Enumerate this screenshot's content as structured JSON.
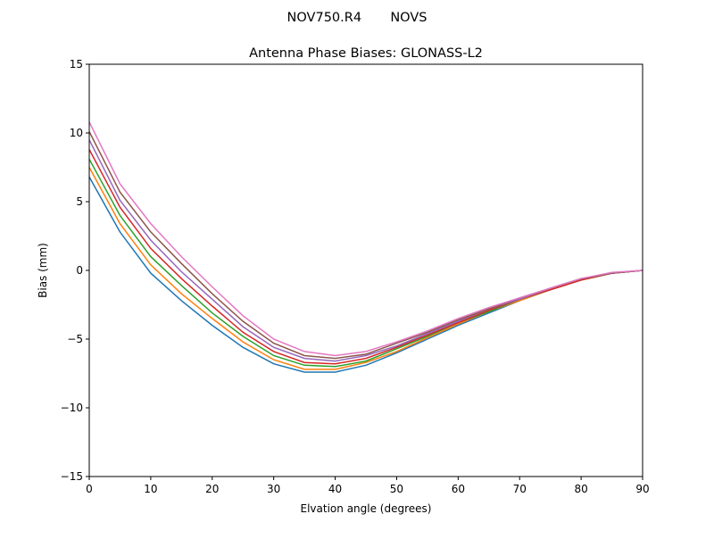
{
  "figure": {
    "suptitle": "NOV750.R4       NOVS"
  },
  "chart_data": {
    "type": "line",
    "title": "Antenna Phase Biases: GLONASS-L2",
    "xlabel": "Elvation angle (degrees)",
    "ylabel": "Bias (mm)",
    "xlim": [
      0,
      90
    ],
    "ylim": [
      -15,
      15
    ],
    "xticks": [
      0,
      10,
      20,
      30,
      40,
      50,
      60,
      70,
      80,
      90
    ],
    "yticks": [
      -15,
      -10,
      -5,
      0,
      5,
      10,
      15
    ],
    "grid": false,
    "legend": "none",
    "x": [
      0,
      5,
      10,
      15,
      20,
      25,
      30,
      35,
      40,
      45,
      50,
      55,
      60,
      65,
      70,
      75,
      80,
      85,
      90
    ],
    "colors": [
      "#1f77b4",
      "#ff7f0e",
      "#2ca02c",
      "#d62728",
      "#9467bd",
      "#8c564b",
      "#e377c2",
      "#7f7f7f",
      "#bcbd22",
      "#17becf"
    ],
    "series": [
      {
        "values": [
          6.8,
          2.8,
          -0.2,
          -2.2,
          -4.0,
          -5.6,
          -6.8,
          -7.4,
          -7.4,
          -6.9,
          -6.0,
          -5.0,
          -4.0,
          -3.1,
          -2.2,
          -1.4,
          -0.7,
          -0.2,
          0
        ]
      },
      {
        "values": [
          7.5,
          3.4,
          0.4,
          -1.7,
          -3.5,
          -5.2,
          -6.5,
          -7.2,
          -7.2,
          -6.7,
          -5.9,
          -4.9,
          -3.9,
          -3.0,
          -2.2,
          -1.4,
          -0.7,
          -0.2,
          0
        ]
      },
      {
        "values": [
          8.1,
          4.0,
          1.0,
          -1.1,
          -3.1,
          -4.8,
          -6.2,
          -6.9,
          -7.0,
          -6.6,
          -5.7,
          -4.8,
          -3.8,
          -3.0,
          -2.1,
          -1.4,
          -0.7,
          -0.2,
          0
        ]
      },
      {
        "values": [
          8.8,
          4.6,
          1.6,
          -0.6,
          -2.6,
          -4.5,
          -5.9,
          -6.7,
          -6.8,
          -6.4,
          -5.6,
          -4.7,
          -3.8,
          -2.9,
          -2.1,
          -1.4,
          -0.7,
          -0.2,
          0
        ]
      },
      {
        "values": [
          9.5,
          5.1,
          2.2,
          -0.1,
          -2.1,
          -4.1,
          -5.6,
          -6.4,
          -6.6,
          -6.2,
          -5.5,
          -4.6,
          -3.7,
          -2.8,
          -2.1,
          -1.3,
          -0.6,
          -0.2,
          0
        ]
      },
      {
        "values": [
          10.1,
          5.7,
          2.8,
          0.5,
          -1.7,
          -3.7,
          -5.3,
          -6.2,
          -6.4,
          -6.1,
          -5.3,
          -4.5,
          -3.6,
          -2.8,
          -2.0,
          -1.3,
          -0.6,
          -0.2,
          0
        ]
      },
      {
        "values": [
          10.8,
          6.3,
          3.4,
          1.0,
          -1.2,
          -3.3,
          -5.0,
          -5.9,
          -6.2,
          -5.9,
          -5.2,
          -4.4,
          -3.5,
          -2.7,
          -2.0,
          -1.3,
          -0.6,
          -0.15,
          0
        ]
      }
    ]
  }
}
